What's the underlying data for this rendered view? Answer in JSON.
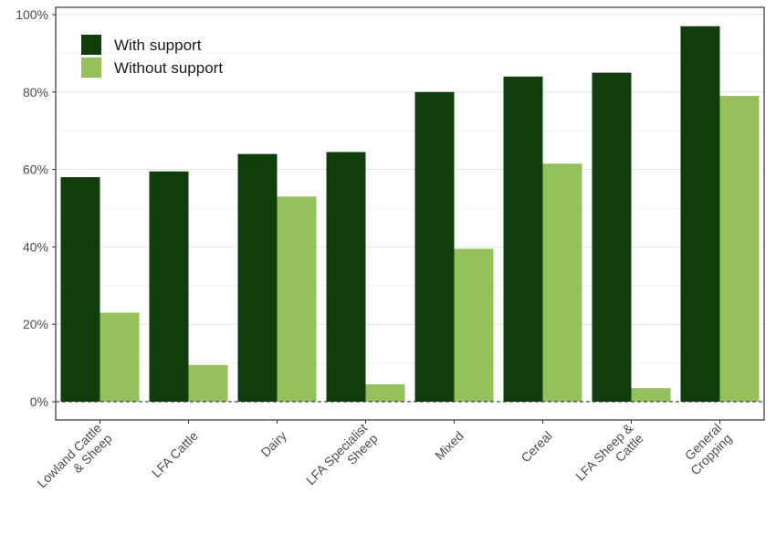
{
  "chart_data": {
    "type": "bar",
    "categories": [
      "Lowland Cattle\n& Sheep",
      "LFA Cattle",
      "Dairy",
      "LFA Specialist\nSheep",
      "Mixed",
      "Cereal",
      "LFA Sheep &\nCattle",
      "General\nCropping"
    ],
    "series": [
      {
        "name": "With support",
        "values": [
          58,
          59.5,
          64,
          64.5,
          80,
          84,
          85,
          97
        ],
        "color": "#0f3d0b"
      },
      {
        "name": "Without support",
        "values": [
          23,
          9.5,
          53,
          4.5,
          39.5,
          61.5,
          3.5,
          79
        ],
        "color": "#94c15b"
      }
    ],
    "ylim": [
      0,
      100
    ],
    "yticks": [
      "0%",
      "20%",
      "40%",
      "60%",
      "80%",
      "100%"
    ],
    "ytick_values": [
      0,
      20,
      40,
      60,
      80,
      100
    ],
    "zero_line": "dashed",
    "grid": true,
    "legend_position": "top-left",
    "title": "",
    "xlabel": "",
    "ylabel": ""
  }
}
